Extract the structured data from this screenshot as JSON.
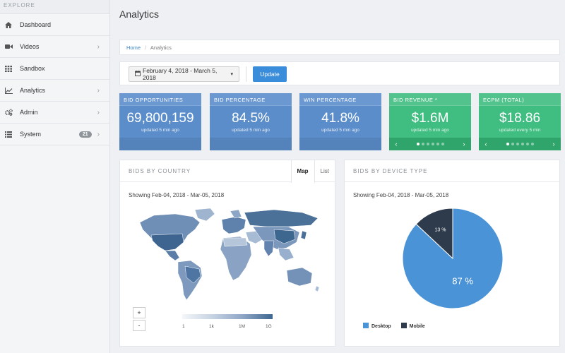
{
  "sidebar": {
    "header": "EXPLORE",
    "items": [
      {
        "label": "Dashboard",
        "icon": "home-icon",
        "has_chevron": false
      },
      {
        "label": "Videos",
        "icon": "video-camera-icon",
        "has_chevron": true
      },
      {
        "label": "Sandbox",
        "icon": "grid-icon",
        "has_chevron": false
      },
      {
        "label": "Analytics",
        "icon": "line-chart-icon",
        "has_chevron": true
      },
      {
        "label": "Admin",
        "icon": "cogs-icon",
        "has_chevron": true
      },
      {
        "label": "System",
        "icon": "list-icon",
        "has_chevron": true,
        "badge": "21"
      }
    ]
  },
  "page": {
    "title": "Analytics"
  },
  "breadcrumb": {
    "home": "Home",
    "separator": "/",
    "current": "Analytics"
  },
  "toolbar": {
    "date_range": "February 4, 2018 - March 5, 2018",
    "update_label": "Update"
  },
  "stats": [
    {
      "title": "BID OPPORTUNITIES",
      "value": "69,800,159",
      "sub": "updated 5 min ago",
      "color": "#5b8dcb"
    },
    {
      "title": "BID PERCENTAGE",
      "value": "84.5%",
      "sub": "updated 5 min ago",
      "color": "#5b8dcb"
    },
    {
      "title": "WIN PERCENTAGE",
      "value": "41.8%",
      "sub": "updated 5 min ago",
      "color": "#5b8dcb"
    },
    {
      "title": "BID REVENUE *",
      "value": "$1.6M",
      "sub": "updated 5 min ago",
      "color": "#40bd80"
    },
    {
      "title": "ECPM (TOTAL)",
      "value": "$18.86",
      "sub": "updated every 5 min",
      "color": "#40bd80"
    }
  ],
  "country_panel": {
    "title": "BIDS BY COUNTRY",
    "tabs": [
      "Map",
      "List"
    ],
    "active_tab": "Map",
    "showing": "Showing Feb-04, 2018 - Mar-05, 2018",
    "zoom_in": "+",
    "zoom_out": "-",
    "legend_ticks": [
      "1",
      "1k",
      "1M",
      "1G"
    ]
  },
  "device_panel": {
    "title": "BIDS BY DEVICE TYPE",
    "showing": "Showing Feb-04, 2018 - Mar-05, 2018"
  },
  "chart_data": {
    "type": "pie",
    "categories": [
      "Desktop",
      "Mobile"
    ],
    "values": [
      87,
      13
    ],
    "labels": [
      "87 %",
      "13 %"
    ],
    "colors": [
      "#4a93d6",
      "#2e3b4c"
    ],
    "legend_position": "bottom-left"
  }
}
